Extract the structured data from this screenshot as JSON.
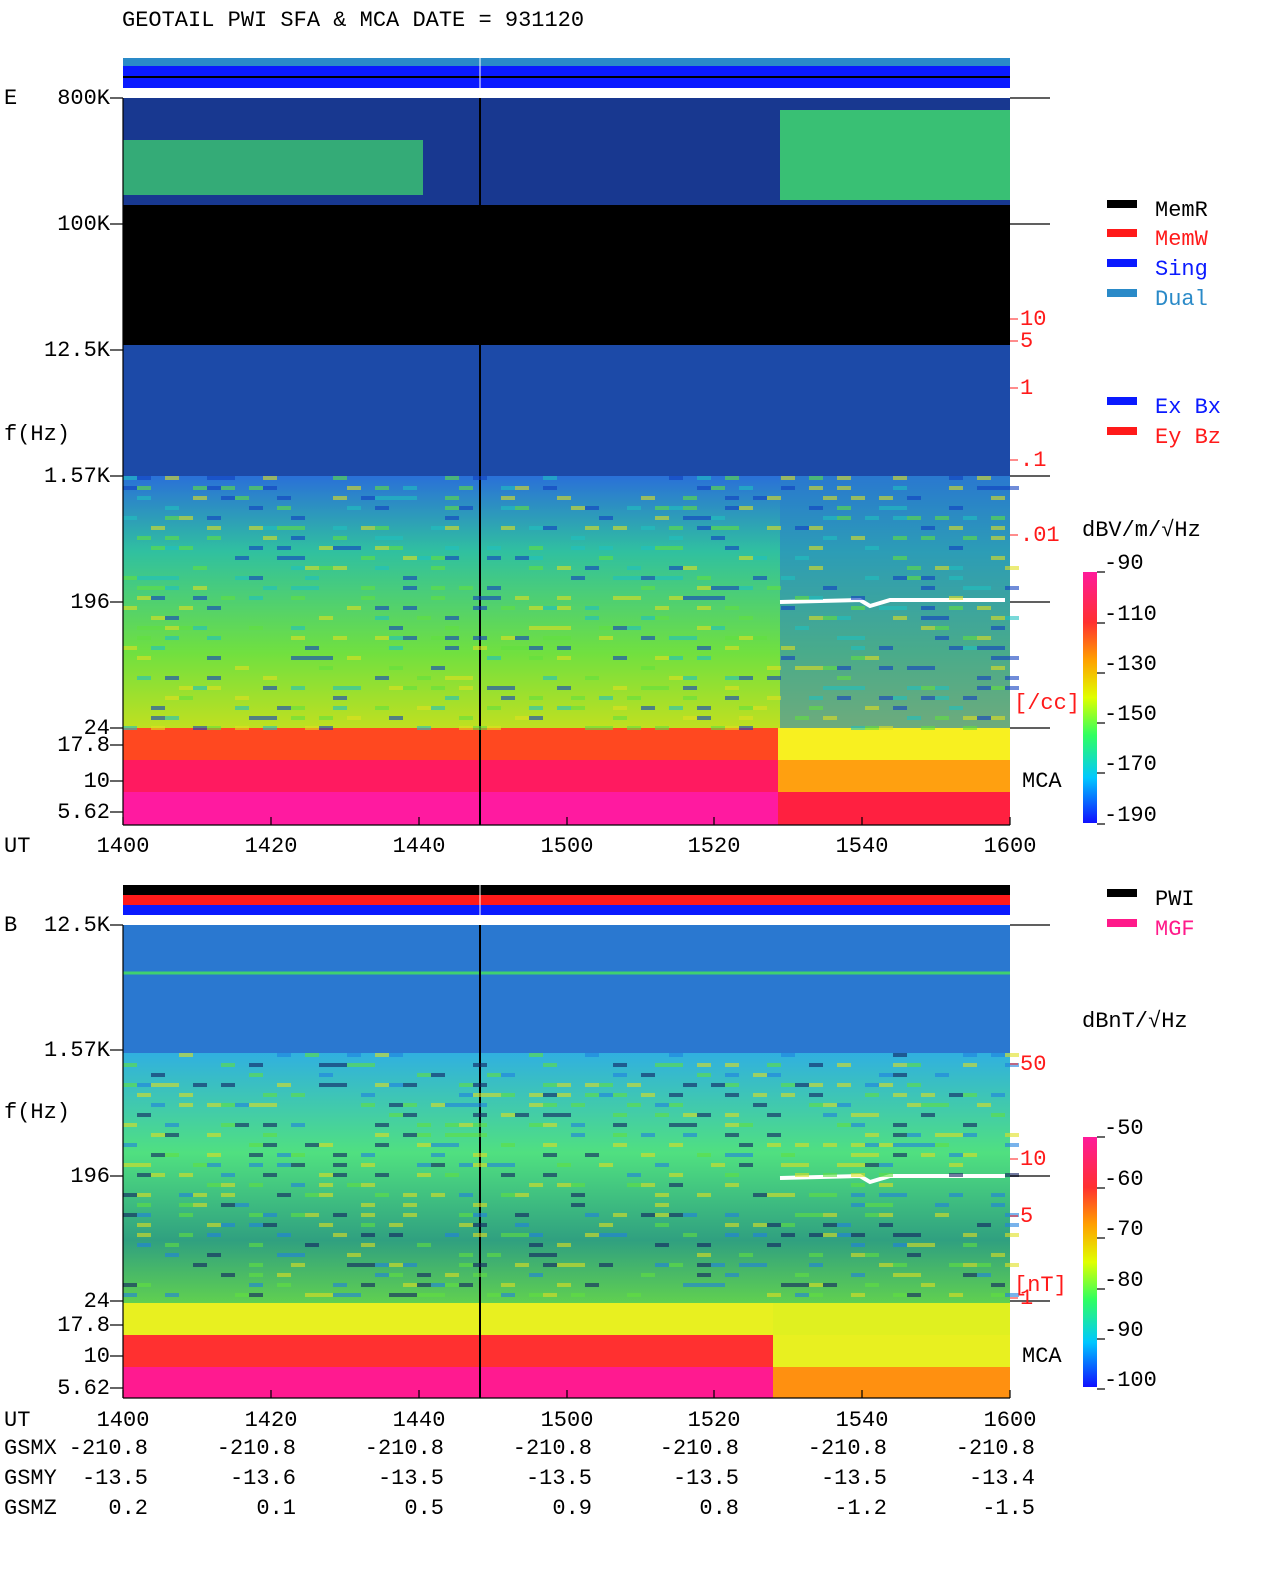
{
  "title": "GEOTAIL  PWI SFA & MCA  DATE = 931120",
  "panels": [
    {
      "label": "E",
      "y_label": "f(Hz)",
      "x_label": "UT",
      "mca": "MCA",
      "freq_ticks": [
        "800K",
        "100K",
        "12.5K",
        "1.57K",
        "196",
        "24",
        "17.8",
        "10",
        "5.62"
      ],
      "x_ticks": [
        "1400",
        "1420",
        "1440",
        "1500",
        "1520",
        "1540",
        "1600"
      ],
      "aux_ticks": [
        "10",
        "5",
        "1",
        ".1",
        ".01"
      ],
      "aux_unit": "[/cc]",
      "legend": [
        {
          "text": "MemR",
          "color": "#000000"
        },
        {
          "text": "MemW",
          "color": "#ff1a1a"
        },
        {
          "text": "Sing",
          "color": "#0a1aff"
        },
        {
          "text": "Dual",
          "color": "#2a8ac8"
        }
      ],
      "legend2": [
        {
          "text": "Ex Bx",
          "color": "#0a1aff"
        },
        {
          "text": "Ey Bz",
          "color": "#ff1a1a"
        }
      ],
      "colorbar_unit": "dBV/m/√Hz",
      "colorbar_ticks": [
        -90,
        -110,
        -130,
        -150,
        -170,
        -190
      ]
    },
    {
      "label": "B",
      "y_label": "f(Hz)",
      "x_label": "UT",
      "mca": "MCA",
      "freq_ticks": [
        "12.5K",
        "1.57K",
        "196",
        "24",
        "17.8",
        "10",
        "5.62"
      ],
      "x_ticks": [
        "1400",
        "1420",
        "1440",
        "1500",
        "1520",
        "1540",
        "1600"
      ],
      "aux_ticks": [
        "50",
        "10",
        "5",
        "1"
      ],
      "aux_unit": "[nT]",
      "legend": [
        {
          "text": "PWI",
          "color": "#000000"
        },
        {
          "text": "MGF",
          "color": "#ff1a8a"
        }
      ],
      "colorbar_unit": "dBnT/√Hz",
      "colorbar_ticks": [
        -50,
        -60,
        -70,
        -80,
        -90,
        -100
      ]
    }
  ],
  "orbit": [
    {
      "name": "GSMX",
      "values": [
        -210.8,
        -210.8,
        -210.8,
        -210.8,
        -210.8,
        -210.8,
        -210.8
      ]
    },
    {
      "name": "GSMY",
      "values": [
        -13.5,
        -13.6,
        -13.5,
        -13.5,
        -13.5,
        -13.5,
        -13.4
      ]
    },
    {
      "name": "GSMZ",
      "values": [
        0.2,
        0.1,
        0.5,
        0.9,
        0.8,
        -1.2,
        -1.5
      ]
    }
  ]
}
